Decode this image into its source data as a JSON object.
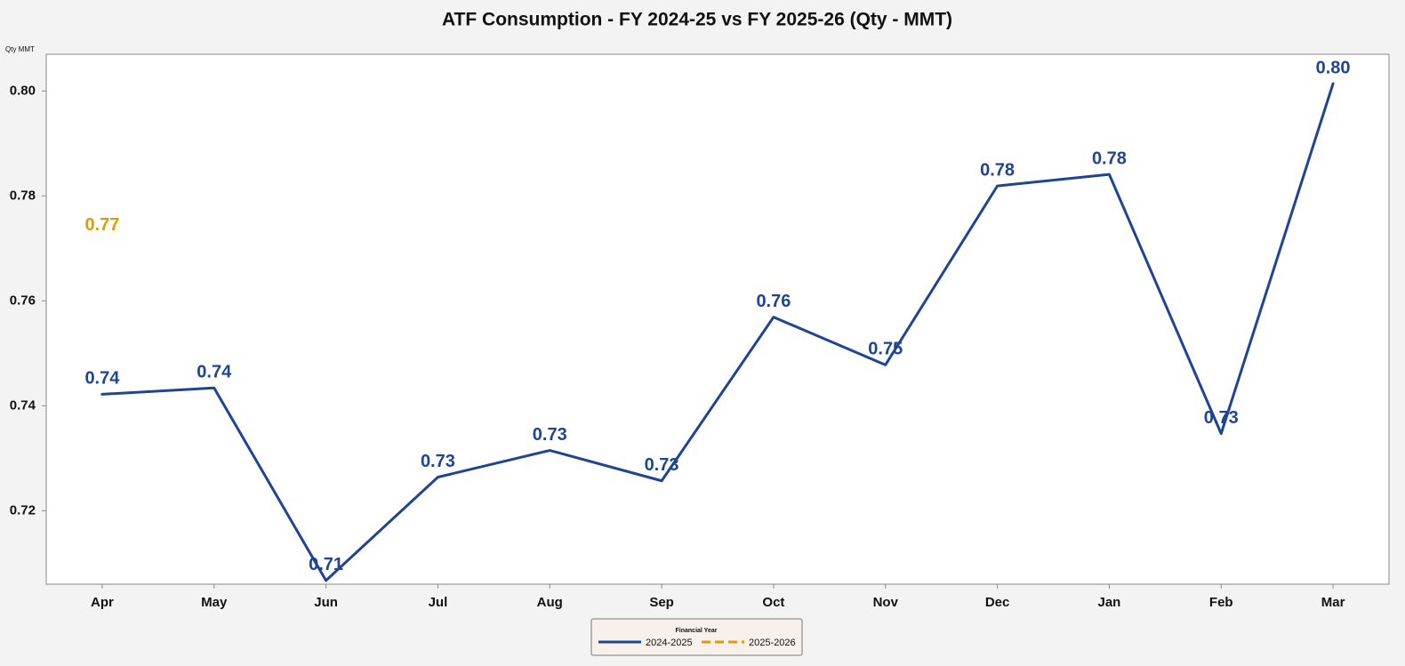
{
  "chart_data": {
    "type": "line",
    "title": "ATF Consumption - FY 2024-25 vs FY 2025-26 (Qty - MMT)",
    "y_label": "Qty MMT",
    "categories": [
      "Apr",
      "May",
      "Jun",
      "Jul",
      "Aug",
      "Sep",
      "Oct",
      "Nov",
      "Dec",
      "Jan",
      "Feb",
      "Mar"
    ],
    "series": [
      {
        "name": "2024-2025",
        "color": "#1f4495",
        "dash": false,
        "values": [
          0.7422,
          0.7434,
          0.7067,
          0.7264,
          0.7315,
          0.7257,
          0.7569,
          0.7478,
          0.7819,
          0.7841,
          0.7347,
          0.8014
        ],
        "value_labels": [
          "0.74",
          "0.74",
          "0.71",
          "0.73",
          "0.73",
          "0.73",
          "0.76",
          "0.75",
          "0.78",
          "0.78",
          "0.73",
          "0.80"
        ]
      },
      {
        "name": "2025-2026",
        "color": "#e39a05",
        "dash": true,
        "values": [
          0.7715,
          null,
          null,
          null,
          null,
          null,
          null,
          null,
          null,
          null,
          null,
          null
        ],
        "value_labels": [
          "0.77",
          null,
          null,
          null,
          null,
          null,
          null,
          null,
          null,
          null,
          null,
          null
        ]
      }
    ],
    "ylim": [
      0.706,
      0.807
    ],
    "yticks": [
      0.72,
      0.74,
      0.76,
      0.78,
      {
        "value": 0.8,
        "label": "0.80"
      }
    ],
    "grid": false,
    "legend": {
      "title": "Financial Year",
      "position": "bottom"
    }
  }
}
